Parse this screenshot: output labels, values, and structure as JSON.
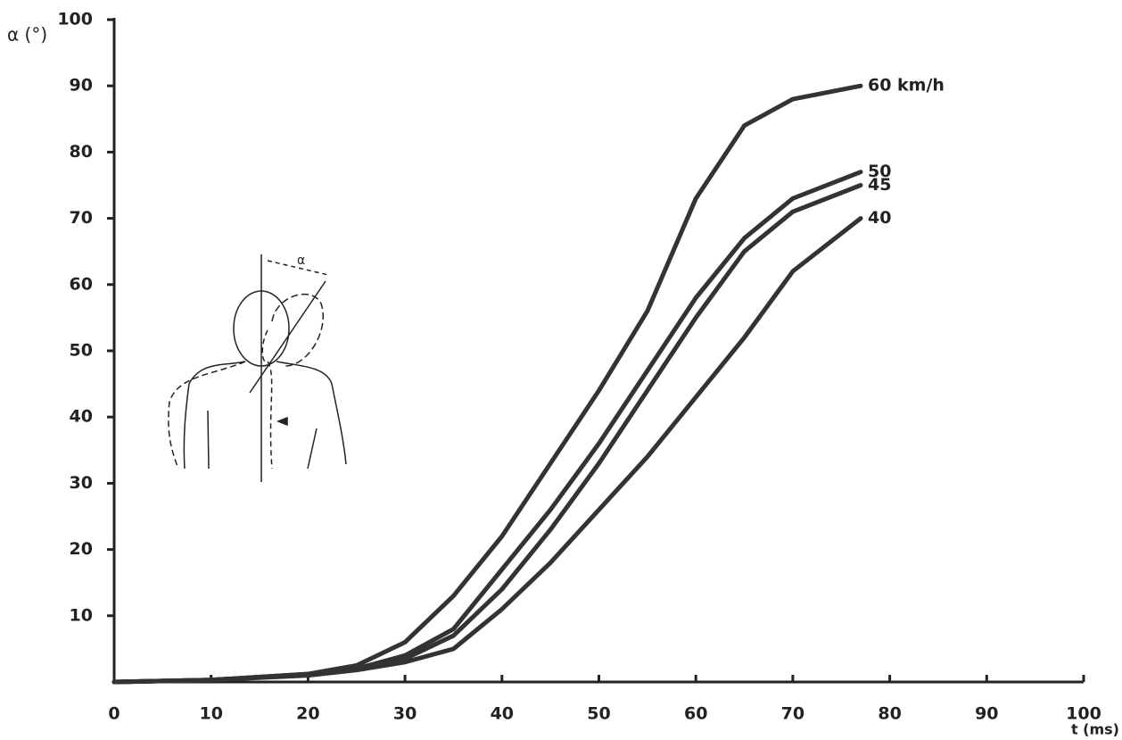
{
  "chart_data": {
    "type": "line",
    "x_label": "t (ms)",
    "y_label": "α (°)",
    "x": [
      0,
      10,
      20,
      25,
      30,
      35,
      40,
      45,
      50,
      55,
      60,
      65,
      70,
      77
    ],
    "series": [
      {
        "name": "60 km/h",
        "color": "#333333",
        "values": [
          0,
          0.3,
          1.2,
          2.5,
          6,
          13,
          22,
          33,
          44,
          56,
          73,
          84,
          88,
          90
        ]
      },
      {
        "name": "50",
        "color": "#333333",
        "values": [
          0,
          0.3,
          1.2,
          2,
          4,
          8,
          17,
          26,
          36,
          47,
          58,
          67,
          73,
          77
        ]
      },
      {
        "name": "45",
        "color": "#333333",
        "values": [
          0,
          0.3,
          1.2,
          2,
          3.5,
          7,
          14,
          23,
          33,
          44,
          55,
          65,
          71,
          75
        ]
      },
      {
        "name": "40",
        "color": "#333333",
        "values": [
          0,
          0.3,
          1,
          1.8,
          3,
          5,
          11,
          18,
          26,
          34,
          43,
          52,
          62,
          70
        ]
      }
    ],
    "xlim": [
      0,
      100
    ],
    "ylim": [
      0,
      100
    ],
    "xticks": [
      0,
      10,
      20,
      30,
      40,
      50,
      60,
      70,
      80,
      90,
      100
    ],
    "yticks": [
      10,
      20,
      30,
      40,
      50,
      60,
      70,
      80,
      90,
      100
    ],
    "annotations": [
      "α"
    ]
  }
}
